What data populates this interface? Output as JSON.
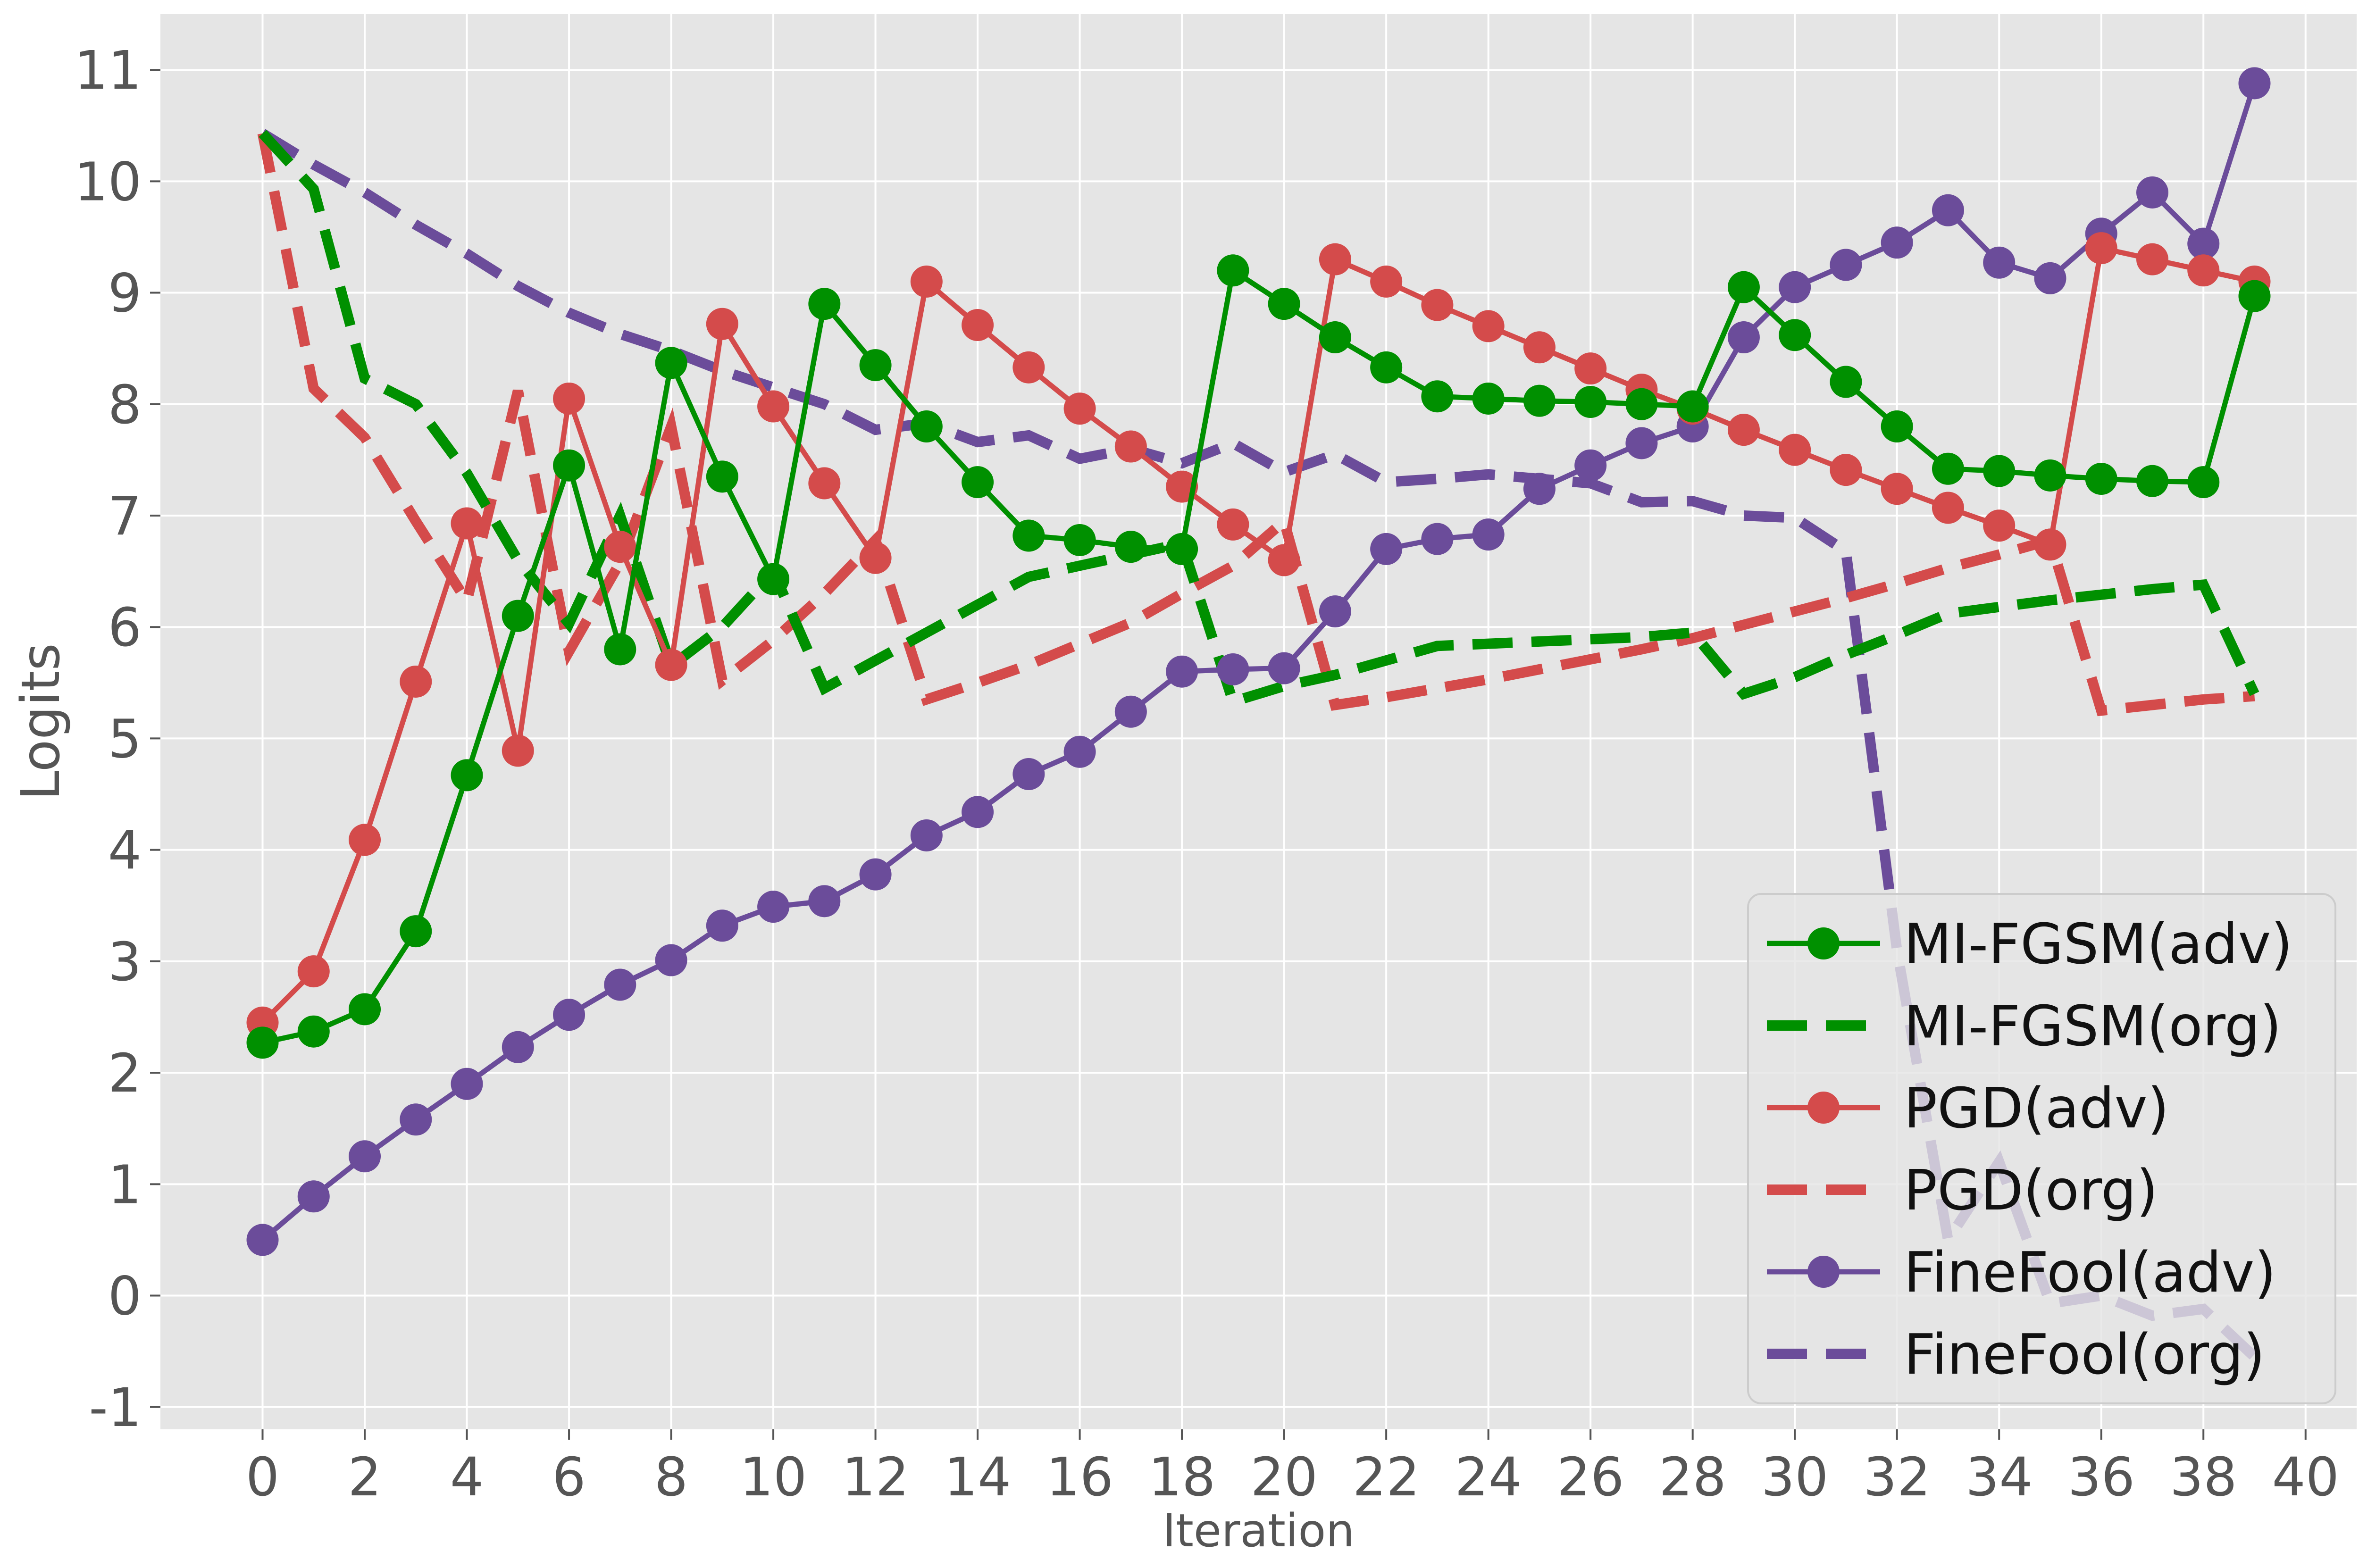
{
  "chart_data": {
    "type": "line",
    "title": "",
    "xlabel": "Iteration",
    "ylabel": "Logits",
    "xlim": [
      -2,
      41
    ],
    "ylim": [
      -1.2,
      11.5
    ],
    "xticks": [
      0,
      2,
      4,
      6,
      8,
      10,
      12,
      14,
      16,
      18,
      20,
      22,
      24,
      26,
      28,
      30,
      32,
      34,
      36,
      38,
      40
    ],
    "yticks": [
      -1,
      0,
      1,
      2,
      3,
      4,
      5,
      6,
      7,
      8,
      9,
      10,
      11
    ],
    "grid": true,
    "legend_position": "bottom-right",
    "x": [
      0,
      1,
      2,
      3,
      4,
      5,
      6,
      7,
      8,
      9,
      10,
      11,
      12,
      13,
      14,
      15,
      16,
      17,
      18,
      19,
      20,
      21,
      22,
      23,
      24,
      25,
      26,
      27,
      28,
      29,
      30,
      31,
      32,
      33,
      34,
      35,
      36,
      37,
      38,
      39
    ],
    "series": [
      {
        "name": "MI-FGSM(adv)",
        "color": "#009000",
        "style": "solid-marker",
        "values": [
          2.27,
          2.37,
          2.57,
          3.27,
          4.67,
          6.1,
          7.45,
          5.8,
          8.37,
          7.35,
          6.43,
          8.9,
          8.35,
          7.8,
          7.3,
          6.82,
          6.78,
          6.72,
          6.7,
          9.2,
          8.9,
          8.6,
          8.33,
          8.07,
          8.05,
          8.03,
          8.02,
          8.0,
          7.98,
          9.05,
          8.62,
          8.2,
          7.8,
          7.42,
          7.4,
          7.36,
          7.33,
          7.31,
          7.3,
          8.97
        ]
      },
      {
        "name": "MI-FGSM(org)",
        "color": "#009000",
        "style": "dashed",
        "values": [
          10.43,
          9.93,
          8.23,
          8.0,
          7.38,
          6.6,
          6.03,
          7.0,
          5.65,
          6.0,
          6.5,
          5.45,
          5.7,
          5.95,
          6.2,
          6.45,
          6.55,
          6.65,
          6.75,
          5.33,
          5.47,
          5.57,
          5.7,
          5.83,
          5.85,
          5.87,
          5.89,
          5.91,
          5.95,
          5.4,
          5.55,
          5.75,
          5.93,
          6.12,
          6.18,
          6.24,
          6.29,
          6.34,
          6.38,
          5.4
        ]
      },
      {
        "name": "PGD(adv)",
        "color": "#D44B4B",
        "style": "solid-marker",
        "values": [
          2.45,
          2.91,
          4.09,
          5.51,
          6.93,
          4.89,
          8.05,
          6.72,
          5.66,
          8.72,
          7.98,
          7.29,
          6.62,
          9.1,
          8.71,
          8.33,
          7.96,
          7.62,
          7.26,
          6.92,
          6.6,
          9.3,
          9.1,
          8.89,
          8.7,
          8.51,
          8.32,
          8.13,
          7.96,
          7.77,
          7.59,
          7.41,
          7.24,
          7.07,
          6.91,
          6.74,
          9.4,
          9.3,
          9.2,
          9.1
        ]
      },
      {
        "name": "PGD(org)",
        "color": "#D44B4B",
        "style": "dashed",
        "values": [
          10.43,
          8.14,
          7.7,
          6.95,
          6.23,
          8.12,
          5.78,
          6.58,
          7.8,
          5.52,
          5.88,
          6.3,
          6.78,
          5.35,
          5.5,
          5.66,
          5.85,
          6.04,
          6.3,
          6.55,
          6.95,
          5.3,
          5.37,
          5.45,
          5.53,
          5.62,
          5.71,
          5.8,
          5.9,
          6.02,
          6.14,
          6.26,
          6.39,
          6.53,
          6.65,
          6.78,
          5.25,
          5.3,
          5.35,
          5.38
        ]
      },
      {
        "name": "FineFool(adv)",
        "color": "#6B4C9A",
        "style": "solid-marker",
        "values": [
          0.5,
          0.89,
          1.25,
          1.58,
          1.9,
          2.23,
          2.52,
          2.79,
          3.01,
          3.32,
          3.49,
          3.54,
          3.78,
          4.13,
          4.34,
          4.68,
          4.88,
          5.24,
          5.6,
          5.62,
          5.63,
          6.14,
          6.7,
          6.79,
          6.83,
          7.24,
          7.45,
          7.65,
          7.8,
          8.6,
          9.05,
          9.25,
          9.45,
          9.74,
          9.27,
          9.13,
          9.53,
          9.9,
          9.44,
          10.88
        ]
      },
      {
        "name": "FineFool(org)",
        "color": "#6B4C9A",
        "style": "dashed",
        "values": [
          10.43,
          10.15,
          9.9,
          9.61,
          9.35,
          9.06,
          8.82,
          8.63,
          8.48,
          8.3,
          8.15,
          8.0,
          7.77,
          7.83,
          7.66,
          7.72,
          7.51,
          7.6,
          7.47,
          7.65,
          7.39,
          7.55,
          7.3,
          7.33,
          7.37,
          7.33,
          7.29,
          7.12,
          7.13,
          7.0,
          6.98,
          6.68,
          3.1,
          0.5,
          1.2,
          -0.07,
          0.0,
          -0.18,
          -0.12,
          -0.55
        ]
      }
    ]
  }
}
